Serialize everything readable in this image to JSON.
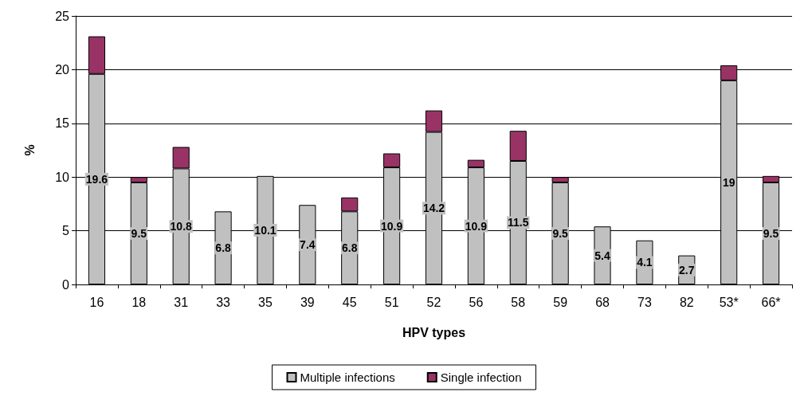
{
  "chart_data": {
    "type": "bar",
    "stacked": true,
    "xlabel": "HPV types",
    "ylabel": "%",
    "categories": [
      "16",
      "18",
      "31",
      "33",
      "35",
      "39",
      "45",
      "51",
      "52",
      "56",
      "58",
      "59",
      "68",
      "73",
      "82",
      "53*",
      "66*"
    ],
    "series": [
      {
        "name": "Multiple infections",
        "color": "#c0c0c0",
        "values": [
          19.6,
          9.5,
          10.8,
          6.8,
          10.1,
          7.4,
          6.8,
          10.9,
          14.2,
          10.9,
          11.5,
          9.5,
          5.4,
          4.1,
          2.7,
          19,
          9.5
        ],
        "value_labels": [
          "19.6",
          "9.5",
          "10.8",
          "6.8",
          "10.1",
          "7.4",
          "6.8",
          "10.9",
          "14.2",
          "10.9",
          "11.5",
          "9.5",
          "5.4",
          "4.1",
          "2.7",
          "19",
          "9.5"
        ]
      },
      {
        "name": "Single infection",
        "color": "#993366",
        "values": [
          3.5,
          0.5,
          2.0,
          0,
          0,
          0,
          1.3,
          1.3,
          2.0,
          0.7,
          2.8,
          0.5,
          0,
          0,
          0,
          1.4,
          0.6
        ]
      }
    ],
    "ylim": [
      0,
      25
    ],
    "yticks": [
      0,
      5,
      10,
      15,
      20,
      25
    ],
    "grid": "y",
    "legend": "bottom"
  }
}
